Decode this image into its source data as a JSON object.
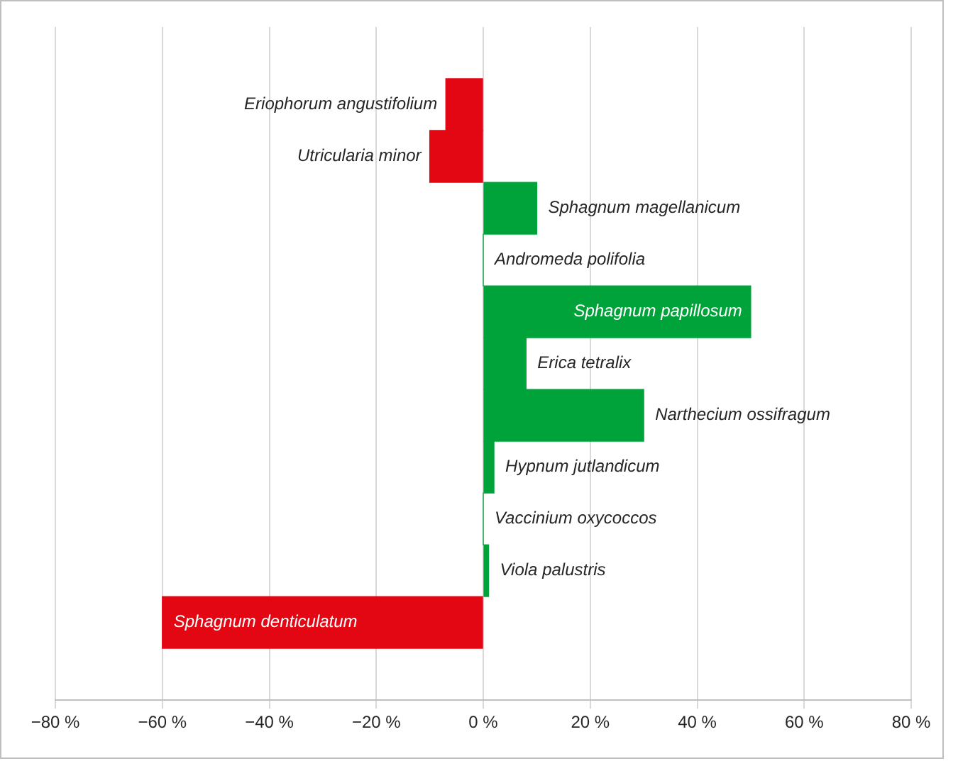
{
  "chart_data": {
    "type": "bar",
    "orientation": "horizontal",
    "categories": [
      "Eriophorum angustifolium",
      "Utricularia minor",
      "Sphagnum magellanicum",
      "Andromeda polifolia",
      "Sphagnum papillosum",
      "Erica tetralix",
      "Narthecium ossifragum",
      "Hypnum jutlandicum",
      "Vaccinium oxycoccos",
      "Viola palustris",
      "Sphagnum denticulatum"
    ],
    "values": [
      -7,
      -10,
      10,
      0,
      50,
      8,
      30,
      2,
      0,
      1,
      -60
    ],
    "colors": [
      "#e30613",
      "#e30613",
      "#00a33a",
      "#00a33a",
      "#00a33a",
      "#00a33a",
      "#00a33a",
      "#00a33a",
      "#00a33a",
      "#00a33a",
      "#e30613"
    ],
    "xlim": [
      -80,
      80
    ],
    "xticks": [
      {
        "value": -80,
        "label": "−80 %"
      },
      {
        "value": -60,
        "label": "−60 %"
      },
      {
        "value": -40,
        "label": "−40 %"
      },
      {
        "value": -20,
        "label": "−20 %"
      },
      {
        "value": 0,
        "label": "0 %"
      },
      {
        "value": 20,
        "label": "20 %"
      },
      {
        "value": 40,
        "label": "40 %"
      },
      {
        "value": 60,
        "label": "60 %"
      },
      {
        "value": 80,
        "label": "80 %"
      }
    ],
    "grid": "x",
    "legend": false
  }
}
